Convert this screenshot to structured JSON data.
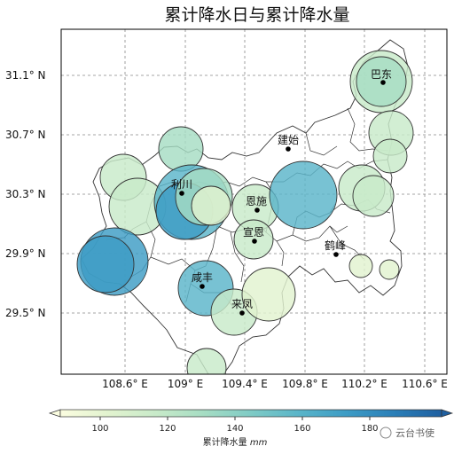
{
  "title": "累计降水日与累计降水量",
  "x_ticks": [
    "108.6° E",
    "109° E",
    "109.4° E",
    "109.8° E",
    "110.2° E",
    "110.6° E"
  ],
  "y_ticks": [
    "31.1° N",
    "30.7° N",
    "30.3° N",
    "29.9° N",
    "29.5° N"
  ],
  "colorbar": {
    "label": "累计降水量",
    "unit": "mm",
    "ticks": [
      "100",
      "120",
      "140",
      "160",
      "180"
    ],
    "colors": [
      "#fbfde0",
      "#e2f3cf",
      "#c8eac9",
      "#a6ddc3",
      "#7fcbc5",
      "#5ab5c9",
      "#3d9cc5",
      "#2b7fb8",
      "#1f5fa0"
    ]
  },
  "cities": [
    {
      "name": "巴东"
    },
    {
      "name": "建始"
    },
    {
      "name": "利川"
    },
    {
      "name": "恩施"
    },
    {
      "name": "宣恩"
    },
    {
      "name": "鹤峰"
    },
    {
      "name": "咸丰"
    },
    {
      "name": "来凤"
    }
  ],
  "watermark": "云台书使"
}
